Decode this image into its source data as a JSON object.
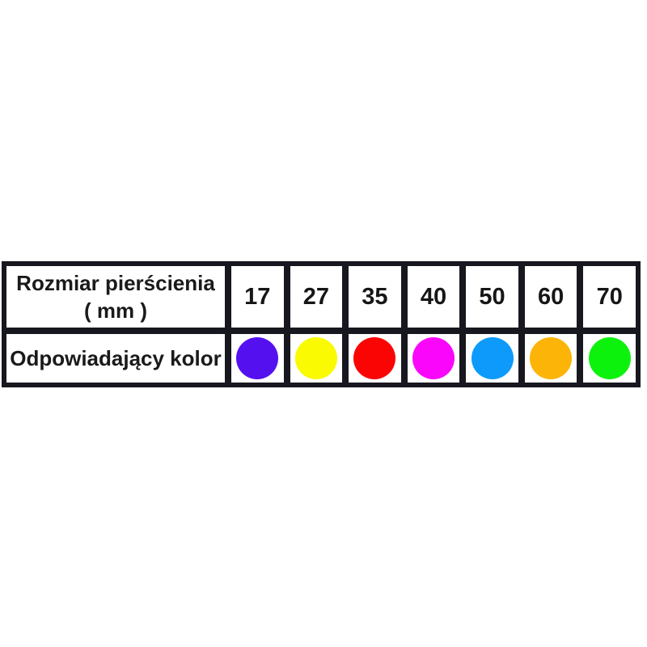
{
  "table": {
    "row1_label_line1": "Rozmiar pierścienia",
    "row1_label_line2": "( mm )",
    "row2_label": "Odpowiadający kolor",
    "columns": [
      {
        "size": "17",
        "color_name": "violet",
        "color": "#5510F0"
      },
      {
        "size": "27",
        "color_name": "yellow",
        "color": "#FAFA02"
      },
      {
        "size": "35",
        "color_name": "red",
        "color": "#FB0404"
      },
      {
        "size": "40",
        "color_name": "magenta",
        "color": "#FA06FA"
      },
      {
        "size": "50",
        "color_name": "blue",
        "color": "#0D9AFA"
      },
      {
        "size": "60",
        "color_name": "orange",
        "color": "#FCB408"
      },
      {
        "size": "70",
        "color_name": "green",
        "color": "#0DF20D"
      }
    ],
    "grid_color": "#17171f",
    "cell_background": "#ffffff",
    "text_color": "#1a1a1a"
  },
  "chart_data": {
    "type": "table",
    "title": "",
    "column_header_row": [
      "Rozmiar pierścienia ( mm )",
      "17",
      "27",
      "35",
      "40",
      "50",
      "60",
      "70"
    ],
    "rows": [
      {
        "label": "Rozmiar pierścienia ( mm )",
        "values": [
          "17",
          "27",
          "35",
          "40",
          "50",
          "60",
          "70"
        ]
      },
      {
        "label": "Odpowiadający kolor",
        "values": [
          "violet",
          "yellow",
          "red",
          "magenta",
          "blue",
          "orange",
          "green"
        ],
        "value_colors": [
          "#5510F0",
          "#FAFA02",
          "#FB0404",
          "#FA06FA",
          "#0D9AFA",
          "#FCB408",
          "#0DF20D"
        ]
      }
    ],
    "layout_hints": {
      "grid": "on",
      "grid_color": "#17171f",
      "background": "#ffffff"
    }
  }
}
